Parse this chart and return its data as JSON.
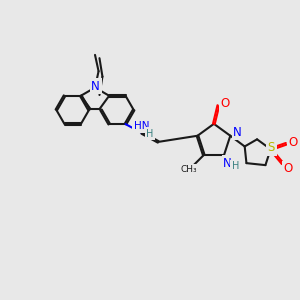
{
  "bg": "#e8e8e8",
  "bc": "#1a1a1a",
  "nc": "#0000ff",
  "oc": "#ff0000",
  "sc": "#b8b800",
  "hc": "#3a8080",
  "lw": 1.5,
  "dbg": 0.028,
  "xlim": [
    0,
    10
  ],
  "ylim": [
    0,
    10
  ]
}
